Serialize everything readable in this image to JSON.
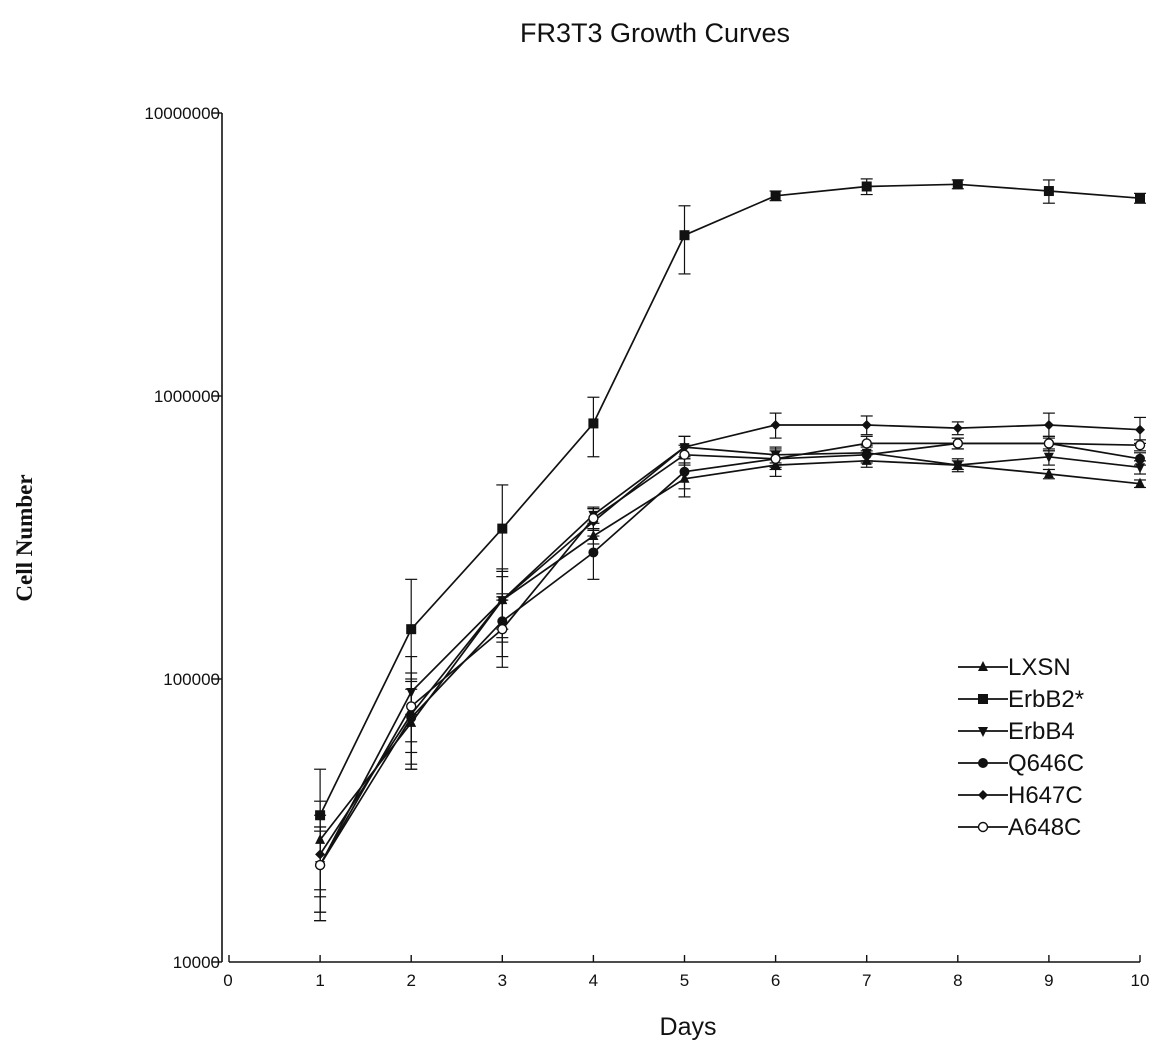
{
  "chart_data": {
    "type": "line",
    "title": "FR3T3 Growth Curves",
    "xlabel": "Days",
    "ylabel": "Cell Number",
    "xlim": [
      0,
      10
    ],
    "ylim": [
      10000,
      10000000
    ],
    "yscale": "log",
    "grid": false,
    "legend_position": "bottom-right",
    "x_ticks": [
      "0",
      "1",
      "2",
      "3",
      "4",
      "5",
      "6",
      "7",
      "8",
      "9",
      "10"
    ],
    "y_ticks": [
      "10000",
      "100000",
      "1000000",
      "10000000"
    ],
    "y_tick_values": [
      10000,
      100000,
      1000000,
      10000000
    ],
    "x": [
      1,
      2,
      3,
      4,
      5,
      6,
      7,
      8,
      9,
      10
    ],
    "series": [
      {
        "name": "LXSN",
        "marker": "triangle-up",
        "values": [
          27000,
          70000,
          190000,
          320000,
          510000,
          570000,
          590000,
          570000,
          530000,
          490000
        ],
        "err": [
          10000,
          22000,
          40000,
          20000,
          70000,
          50000,
          30000,
          20000,
          20000,
          15000
        ]
      },
      {
        "name": "ErbB2*",
        "marker": "square",
        "values": [
          33000,
          150000,
          340000,
          800000,
          3700000,
          5100000,
          5500000,
          5600000,
          5300000,
          5000000
        ],
        "err": [
          15000,
          75000,
          145000,
          190000,
          1000000,
          200000,
          350000,
          200000,
          500000,
          200000
        ]
      },
      {
        "name": "ErbB4",
        "marker": "triangle-down",
        "values": [
          22000,
          90000,
          190000,
          380000,
          660000,
          620000,
          630000,
          570000,
          610000,
          560000
        ],
        "err": [
          8000,
          30000,
          55000,
          25000,
          60000,
          40000,
          40000,
          30000,
          40000,
          30000
        ]
      },
      {
        "name": "Q646C",
        "marker": "circle-filled",
        "values": [
          22000,
          73000,
          160000,
          280000,
          540000,
          600000,
          620000,
          680000,
          680000,
          600000
        ],
        "err": [
          7000,
          25000,
          40000,
          55000,
          70000,
          50000,
          40000,
          30000,
          40000,
          30000
        ]
      },
      {
        "name": "H647C",
        "marker": "diamond",
        "values": [
          24000,
          75000,
          190000,
          360000,
          660000,
          790000,
          790000,
          770000,
          790000,
          760000
        ],
        "err": [
          9000,
          25000,
          50000,
          40000,
          60000,
          80000,
          60000,
          40000,
          80000,
          80000
        ]
      },
      {
        "name": "A648C",
        "marker": "circle-open",
        "values": [
          22000,
          80000,
          150000,
          370000,
          620000,
          600000,
          680000,
          680000,
          680000,
          670000
        ],
        "err": [
          8000,
          25000,
          40000,
          30000,
          50000,
          40000,
          40000,
          30000,
          40000,
          30000
        ]
      }
    ]
  }
}
